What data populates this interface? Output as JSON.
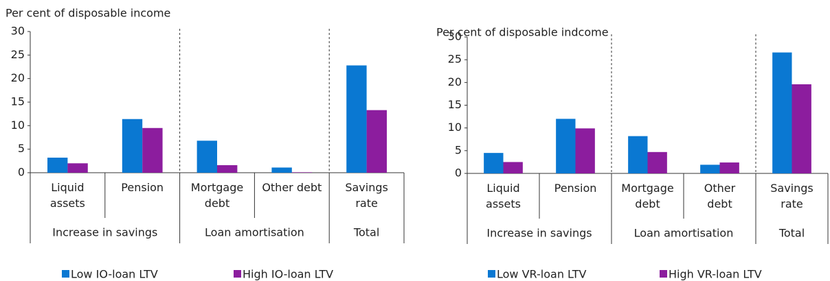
{
  "chart_data": [
    {
      "type": "bar",
      "y_label": "Per cent of disposable income",
      "categories": [
        "Liquid\nassets",
        "Pension",
        "Mortgage\ndebt",
        "Other debt",
        "Savings\nrate"
      ],
      "groups": [
        {
          "label": "Increase in savings",
          "size": 2
        },
        {
          "label": "Loan amortisation",
          "size": 2
        },
        {
          "label": "Total",
          "size": 1
        }
      ],
      "series": [
        {
          "name": "Low IO-loan LTV",
          "color": "#0a78d2",
          "values": [
            3.2,
            11.4,
            6.8,
            1.1,
            22.8
          ]
        },
        {
          "name": "High IO-loan LTV",
          "color": "#8c1d9e",
          "values": [
            2.0,
            9.5,
            1.6,
            0.1,
            13.3
          ]
        }
      ],
      "ylim": [
        0,
        30
      ],
      "yticks": [
        0,
        5,
        10,
        15,
        20,
        25,
        30
      ],
      "grid": false
    },
    {
      "type": "bar",
      "y_label": "Per cent of disposable indcome",
      "categories": [
        "Liquid\nassets",
        "Pension",
        "Mortgage\ndebt",
        "Other\ndebt",
        "Savings\nrate"
      ],
      "groups": [
        {
          "label": "Increase in savings",
          "size": 2
        },
        {
          "label": "Loan amortisation",
          "size": 2
        },
        {
          "label": "Total",
          "size": 1
        }
      ],
      "series": [
        {
          "name": "Low VR-loan LTV",
          "color": "#0a78d2",
          "values": [
            4.5,
            12.0,
            8.2,
            1.9,
            26.6
          ]
        },
        {
          "name": "High VR-loan LTV",
          "color": "#8c1d9e",
          "values": [
            2.5,
            9.9,
            4.7,
            2.4,
            19.6
          ]
        }
      ],
      "ylim": [
        0,
        30
      ],
      "yticks": [
        0,
        5,
        10,
        15,
        20,
        25,
        30
      ],
      "grid": false
    }
  ]
}
